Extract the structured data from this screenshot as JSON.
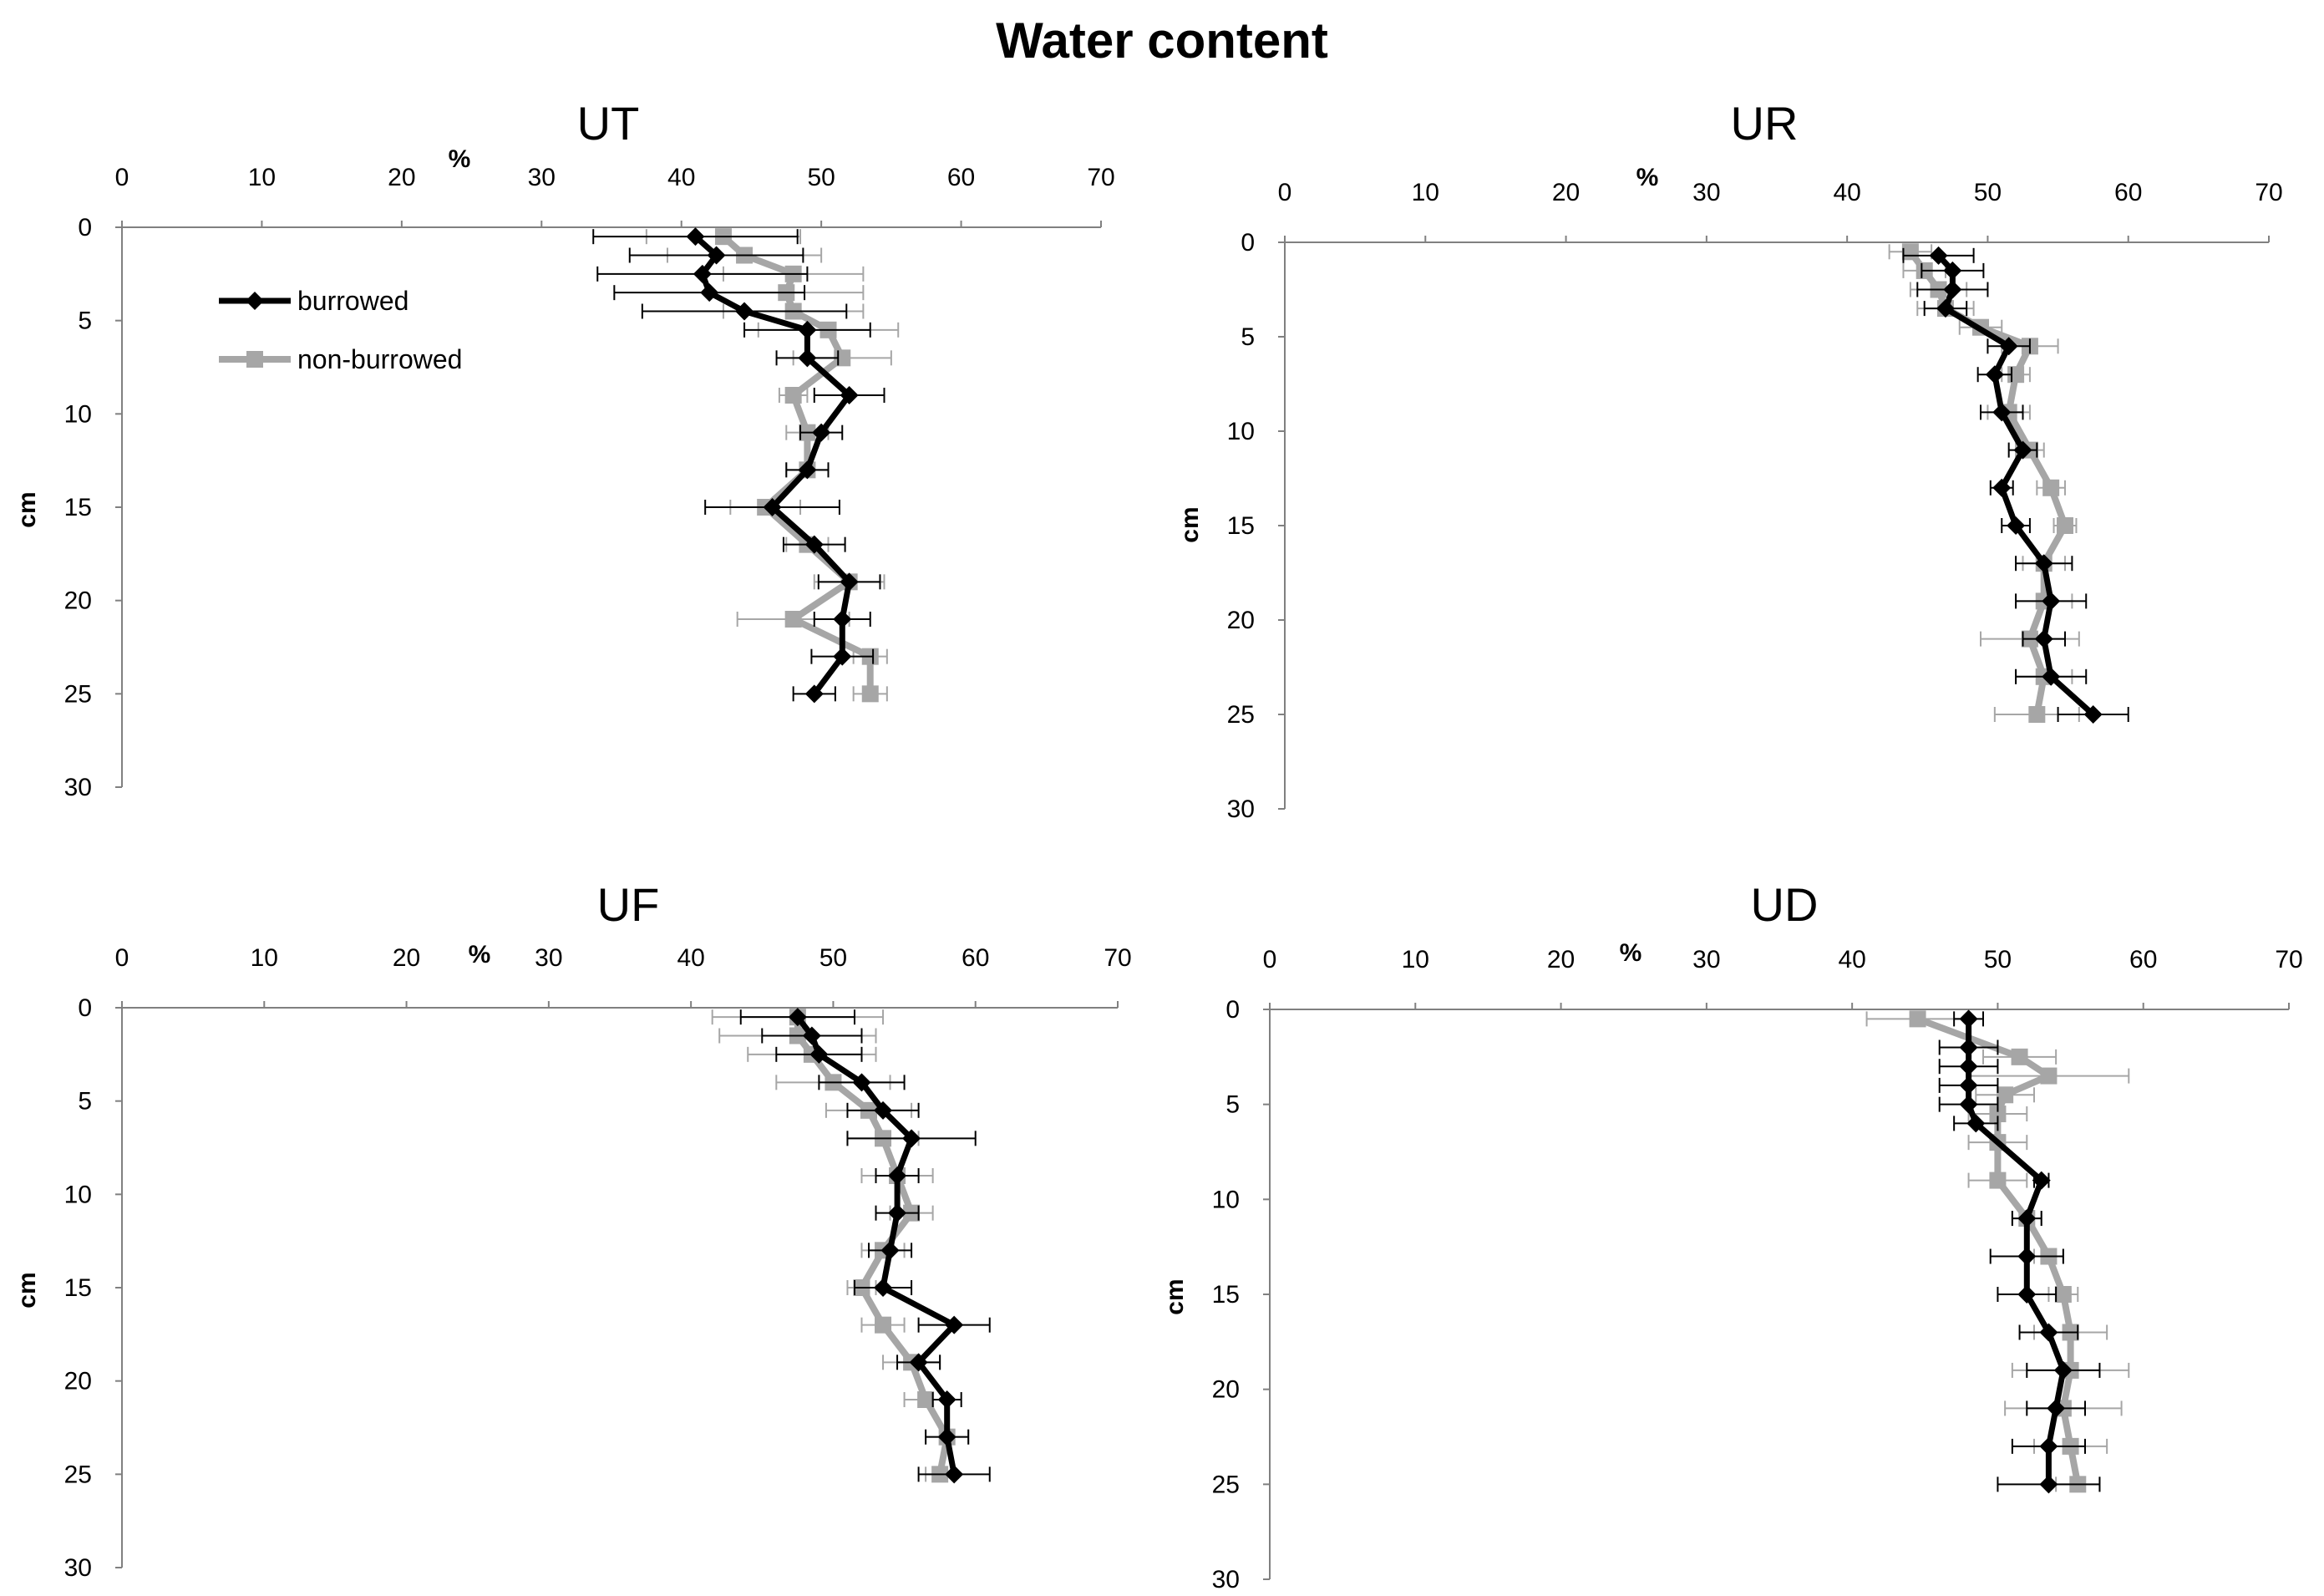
{
  "figure": {
    "title": "Water content"
  },
  "colors": {
    "burrowed": "#000000",
    "non_burrowed": "#a6a6a6",
    "axis": "#808080"
  },
  "chart_data": [
    {
      "id": "UT",
      "type": "line",
      "title": "UT",
      "xlabel": "%",
      "ylabel": "cm",
      "xlim": [
        0,
        70
      ],
      "ylim": [
        30,
        0
      ],
      "xticks": [
        0,
        10,
        20,
        30,
        40,
        50,
        60,
        70
      ],
      "yticks": [
        0,
        5,
        10,
        15,
        20,
        25,
        30
      ],
      "legend": "upper-left",
      "series": [
        {
          "name": "burrowed",
          "depth": [
            0.5,
            1.5,
            2.5,
            3.5,
            4.5,
            5.5,
            7,
            9,
            11,
            13,
            15,
            17,
            19,
            21,
            23,
            25
          ],
          "values": [
            41,
            42.5,
            41.5,
            42,
            44.5,
            49,
            49,
            52,
            50,
            49,
            46.5,
            49.5,
            52,
            51.5,
            51.5,
            49.5
          ],
          "errors": [
            7.3,
            6.2,
            7.5,
            6.8,
            7.3,
            4.5,
            2.2,
            2.5,
            1.5,
            1.5,
            4.8,
            2.2,
            2.2,
            2,
            2.2,
            1.5
          ]
        },
        {
          "name": "non-burrowed",
          "depth": [
            0.5,
            1.5,
            2.5,
            3.5,
            4.5,
            5.5,
            7,
            9,
            11,
            13,
            15,
            17,
            19,
            21,
            23,
            25
          ],
          "values": [
            43,
            44.5,
            48,
            47.5,
            48,
            50.5,
            51.5,
            48,
            49,
            49,
            46,
            49,
            52,
            48,
            53.5,
            53.5
          ],
          "errors": [
            5.5,
            5.5,
            5,
            5.5,
            5,
            5,
            3.5,
            1,
            1.5,
            1.5,
            2.5,
            1.5,
            2.5,
            4,
            1.2,
            1.2
          ]
        }
      ]
    },
    {
      "id": "UR",
      "type": "line",
      "title": "UR",
      "xlabel": "%",
      "ylabel": "cm",
      "xlim": [
        0,
        70
      ],
      "ylim": [
        30,
        0
      ],
      "xticks": [
        0,
        10,
        20,
        30,
        40,
        50,
        60,
        70
      ],
      "yticks": [
        0,
        5,
        10,
        15,
        20,
        25,
        30
      ],
      "series": [
        {
          "name": "burrowed",
          "depth": [
            0.7,
            1.5,
            2.5,
            3.5,
            5.5,
            7,
            9,
            11,
            13,
            15,
            17,
            19,
            21,
            23,
            25
          ],
          "values": [
            46.5,
            47.5,
            47.5,
            47,
            51.5,
            50.5,
            51,
            52.5,
            51,
            52,
            54,
            54.5,
            54,
            54.5,
            57.5
          ],
          "errors": [
            2.5,
            2.2,
            2.5,
            1.5,
            1.5,
            1.2,
            1.5,
            1,
            0.8,
            1,
            2,
            2.5,
            1.5,
            2.5,
            2.5
          ]
        },
        {
          "name": "non-burrowed",
          "depth": [
            0.5,
            1.5,
            2.5,
            3.5,
            4.5,
            5.5,
            7,
            9,
            11,
            13,
            15,
            17,
            19,
            21,
            23,
            25
          ],
          "values": [
            44.5,
            45.5,
            46.5,
            47,
            49.5,
            53,
            52,
            51.5,
            53,
            54.5,
            55.5,
            54,
            54,
            53,
            54,
            53.5
          ],
          "errors": [
            1.5,
            1.5,
            2,
            2,
            1.5,
            2,
            1,
            1.5,
            1,
            1,
            0.8,
            1.5,
            2,
            3.5,
            2,
            3
          ]
        }
      ]
    },
    {
      "id": "UF",
      "type": "line",
      "title": "UF",
      "xlabel": "%",
      "ylabel": "cm",
      "xlim": [
        0,
        70
      ],
      "ylim": [
        30,
        0
      ],
      "xticks": [
        0,
        10,
        20,
        30,
        40,
        50,
        60,
        70
      ],
      "yticks": [
        0,
        5,
        10,
        15,
        20,
        25,
        30
      ],
      "series": [
        {
          "name": "burrowed",
          "depth": [
            0.5,
            1.5,
            2.5,
            4,
            5.5,
            7,
            9,
            11,
            13,
            15,
            17,
            19,
            21,
            23,
            25
          ],
          "values": [
            47.5,
            48.5,
            49,
            52,
            53.5,
            55.5,
            54.5,
            54.5,
            54,
            53.5,
            58.5,
            56,
            58,
            58,
            58.5
          ],
          "errors": [
            4,
            3.5,
            3,
            3,
            2.5,
            4.5,
            1.5,
            1.5,
            1.5,
            2,
            2.5,
            1.5,
            1,
            1.5,
            2.5
          ]
        },
        {
          "name": "non-burrowed",
          "depth": [
            0.5,
            1.5,
            2.5,
            4,
            5.5,
            7,
            9,
            11,
            13,
            15,
            17,
            19,
            21,
            23,
            25
          ],
          "values": [
            47.5,
            47.5,
            48.5,
            50,
            52.5,
            53.5,
            54.5,
            55.5,
            53.5,
            52,
            53.5,
            55.5,
            56.5,
            58,
            57.5
          ],
          "errors": [
            6,
            5.5,
            4.5,
            4,
            3,
            2.5,
            2.5,
            1.5,
            1.5,
            1,
            1.5,
            2,
            1.5,
            1.5,
            1
          ]
        }
      ]
    },
    {
      "id": "UD",
      "type": "line",
      "title": "UD",
      "xlabel": "%",
      "ylabel": "cm",
      "xlim": [
        0,
        70
      ],
      "ylim": [
        30,
        0
      ],
      "xticks": [
        0,
        10,
        20,
        30,
        40,
        50,
        60,
        70
      ],
      "yticks": [
        0,
        5,
        10,
        15,
        20,
        25,
        30
      ],
      "series": [
        {
          "name": "burrowed",
          "depth": [
            0.5,
            2,
            3,
            4,
            5,
            6,
            9,
            11,
            13,
            15,
            17,
            19,
            21,
            23,
            25
          ],
          "values": [
            48,
            48,
            48,
            48,
            48,
            48.5,
            53,
            52,
            52,
            52,
            53.5,
            54.5,
            54,
            53.5,
            53.5
          ],
          "errors": [
            1,
            2,
            2,
            2,
            2,
            1.5,
            0.5,
            1,
            2.5,
            2,
            2,
            2.5,
            2,
            2.5,
            3.5
          ]
        },
        {
          "name": "non-burrowed",
          "depth": [
            0.5,
            2.5,
            3.5,
            4.5,
            5.5,
            7,
            9,
            11,
            13,
            15,
            17,
            19,
            21,
            23,
            25
          ],
          "values": [
            44.5,
            51.5,
            53.5,
            50.5,
            50,
            50,
            50,
            52,
            53.5,
            54.5,
            55,
            55,
            54.5,
            55,
            55.5
          ],
          "errors": [
            3.5,
            2.5,
            5.5,
            2,
            2,
            2,
            2,
            1,
            1,
            1,
            2.5,
            4,
            4,
            2.5,
            1.5
          ]
        }
      ]
    }
  ]
}
